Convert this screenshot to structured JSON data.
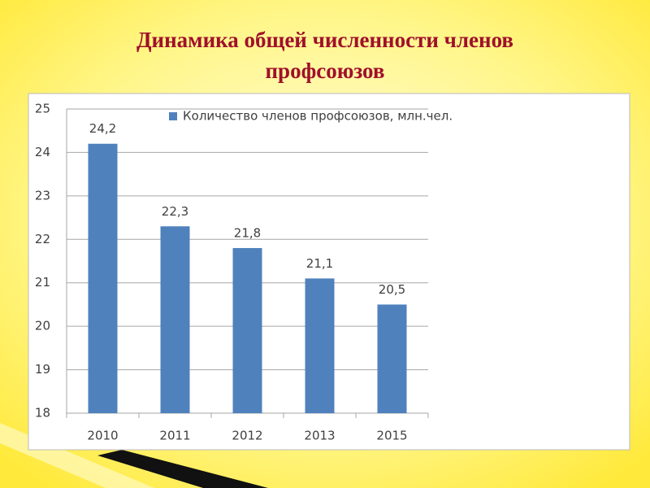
{
  "title_lines": [
    "Динамика общей численности членов",
    "профсоюзов"
  ],
  "chart_data": {
    "type": "bar",
    "categories": [
      "2010",
      "2011",
      "2012",
      "2013",
      "2015"
    ],
    "series": [
      {
        "name": "Количество членов профсоюзов, млн.чел.",
        "color": "#4f81bd",
        "values": [
          24.2,
          22.3,
          21.8,
          21.1,
          20.5
        ],
        "value_labels": [
          "24,2",
          "22,3",
          "21,8",
          "21,1",
          "20,5"
        ]
      }
    ],
    "ylim": [
      18,
      25
    ],
    "yticks": [
      18,
      19,
      20,
      21,
      22,
      23,
      24,
      25
    ],
    "grid": true,
    "legend": "top"
  }
}
